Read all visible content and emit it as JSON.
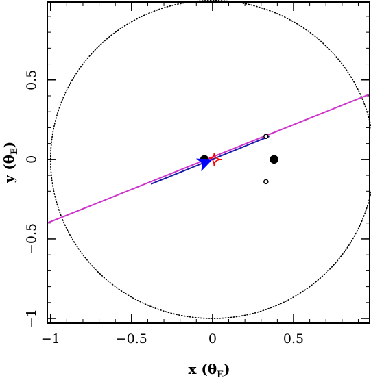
{
  "chart_data": {
    "type": "scatter",
    "title": "",
    "xlabel": "x (θE)",
    "ylabel": "y (θE)",
    "xlabel_parts": {
      "var": "x",
      "theta": "θ",
      "sub": "E"
    },
    "ylabel_parts": {
      "var": "y",
      "theta": "θ",
      "sub": "E"
    },
    "xlim": [
      -1.02,
      0.97
    ],
    "ylim": [
      -1.03,
      0.99
    ],
    "xticks": [
      {
        "value": -1,
        "label": "−1"
      },
      {
        "value": -0.5,
        "label": "−0.5"
      },
      {
        "value": 0,
        "label": "0"
      },
      {
        "value": 0.5,
        "label": "0.5"
      }
    ],
    "yticks": [
      {
        "value": -1,
        "label": "−1"
      },
      {
        "value": -0.5,
        "label": "−0.5"
      },
      {
        "value": 0,
        "label": "0"
      },
      {
        "value": 0.5,
        "label": "0.5"
      }
    ],
    "minor_tick_step": 0.1,
    "grid": false,
    "einstein_ring": {
      "center": [
        0,
        0
      ],
      "radius": 1.0,
      "color": "#000000",
      "style": "dotted"
    },
    "trajectory": {
      "color": "#cc33cc",
      "points": [
        [
          -1.02,
          -0.4
        ],
        [
          0.97,
          0.41
        ]
      ]
    },
    "trajectory_segment": {
      "color": "#1a1aa6",
      "points": [
        [
          -0.38,
          -0.155
        ],
        [
          0.35,
          0.145
        ]
      ]
    },
    "source_marker": {
      "color": "#0000ff",
      "at": [
        -0.05,
        -0.02
      ],
      "direction_deg": 22
    },
    "caustic": {
      "color": "#ff0000",
      "center": [
        0.01,
        0.0
      ],
      "points": [
        [
          -0.02,
          0.01
        ],
        [
          0.06,
          0.0
        ],
        [
          0.01,
          0.04
        ],
        [
          0.01,
          -0.04
        ]
      ]
    },
    "lens_masses": [
      {
        "x": -0.05,
        "y": 0.0,
        "size": "large",
        "filled": true
      },
      {
        "x": 0.38,
        "y": 0.0,
        "size": "large",
        "filled": true
      }
    ],
    "images": [
      {
        "x": 0.33,
        "y": 0.145,
        "filled": false
      },
      {
        "x": 0.33,
        "y": -0.14,
        "filled": false
      }
    ]
  }
}
